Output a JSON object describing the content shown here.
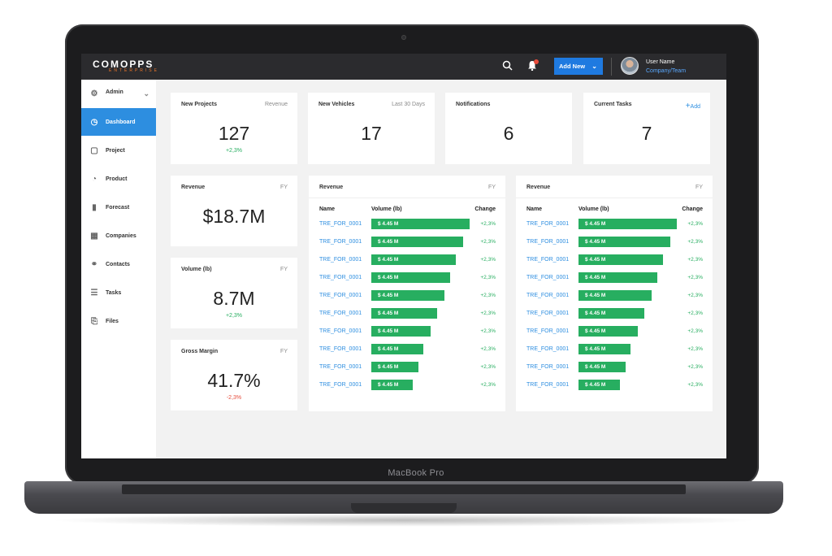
{
  "device": {
    "model_label": "MacBook Pro"
  },
  "topbar": {
    "logo_main": "COMOPPS",
    "logo_sub": "ENTERPRISE",
    "search_icon": "search-icon",
    "bell_icon": "bell-icon",
    "add_new_label": "Add New",
    "user_name": "User Name",
    "user_team": "Company/Team"
  },
  "sidebar": {
    "items": [
      {
        "label": "Admin",
        "icon": "gear-icon"
      },
      {
        "label": "Dashboard",
        "icon": "dashboard-icon"
      },
      {
        "label": "Project",
        "icon": "project-icon"
      },
      {
        "label": "Product",
        "icon": "pie-icon"
      },
      {
        "label": "Forecast",
        "icon": "bar-chart-icon"
      },
      {
        "label": "Companies",
        "icon": "building-icon"
      },
      {
        "label": "Contacts",
        "icon": "users-icon"
      },
      {
        "label": "Tasks",
        "icon": "list-icon"
      },
      {
        "label": "Files",
        "icon": "file-icon"
      }
    ]
  },
  "kpis": {
    "new_projects": {
      "title": "New Projects",
      "aux": "Revenue",
      "value": "127",
      "delta": "+2,3%"
    },
    "new_vehicles": {
      "title": "New Vehicles",
      "aux": "Last 30 Days",
      "value": "17"
    },
    "notifications": {
      "title": "Notifications",
      "value": "6"
    },
    "current_tasks": {
      "title": "Current Tasks",
      "aux": "Add",
      "value": "7"
    },
    "revenue": {
      "title": "Revenue",
      "aux": "FY",
      "value": "$18.7M"
    },
    "volume": {
      "title": "Volume (lb)",
      "aux": "FY",
      "value": "8.7M",
      "delta": "+2,3%"
    },
    "gross_margin": {
      "title": "Gross Margin",
      "aux": "FY",
      "value": "41.7%",
      "delta": "-2,3%"
    }
  },
  "tables": [
    {
      "title": "Revenue",
      "aux": "FY",
      "headers": {
        "name": "Name",
        "volume": "Volume (lb)",
        "change": "Change"
      },
      "rows": [
        {
          "name": "TRE_FOR_0001",
          "volume": "$ 4.45 M",
          "fill": 1.0,
          "change": "+2,3%"
        },
        {
          "name": "TRE_FOR_0001",
          "volume": "$ 4.45 M",
          "fill": 0.93,
          "change": "+2,3%"
        },
        {
          "name": "TRE_FOR_0001",
          "volume": "$ 4.45 M",
          "fill": 0.86,
          "change": "+2,3%"
        },
        {
          "name": "TRE_FOR_0001",
          "volume": "$ 4.45 M",
          "fill": 0.8,
          "change": "+2,3%"
        },
        {
          "name": "TRE_FOR_0001",
          "volume": "$ 4.45 M",
          "fill": 0.74,
          "change": "+2,3%"
        },
        {
          "name": "TRE_FOR_0001",
          "volume": "$ 4.45 M",
          "fill": 0.67,
          "change": "+2,3%"
        },
        {
          "name": "TRE_FOR_0001",
          "volume": "$ 4.45 M",
          "fill": 0.6,
          "change": "+2,3%"
        },
        {
          "name": "TRE_FOR_0001",
          "volume": "$ 4.45 M",
          "fill": 0.53,
          "change": "+2,3%"
        },
        {
          "name": "TRE_FOR_0001",
          "volume": "$ 4.45 M",
          "fill": 0.48,
          "change": "+2,3%"
        },
        {
          "name": "TRE_FOR_0001",
          "volume": "$ 4.45 M",
          "fill": 0.42,
          "change": "+2,3%"
        }
      ]
    },
    {
      "title": "Revenue",
      "aux": "FY",
      "headers": {
        "name": "Name",
        "volume": "Volume (lb)",
        "change": "Change"
      },
      "rows": [
        {
          "name": "TRE_FOR_0001",
          "volume": "$ 4.45 M",
          "fill": 1.0,
          "change": "+2,3%"
        },
        {
          "name": "TRE_FOR_0001",
          "volume": "$ 4.45 M",
          "fill": 0.93,
          "change": "+2,3%"
        },
        {
          "name": "TRE_FOR_0001",
          "volume": "$ 4.45 M",
          "fill": 0.86,
          "change": "+2,3%"
        },
        {
          "name": "TRE_FOR_0001",
          "volume": "$ 4.45 M",
          "fill": 0.8,
          "change": "+2,3%"
        },
        {
          "name": "TRE_FOR_0001",
          "volume": "$ 4.45 M",
          "fill": 0.74,
          "change": "+2,3%"
        },
        {
          "name": "TRE_FOR_0001",
          "volume": "$ 4.45 M",
          "fill": 0.67,
          "change": "+2,3%"
        },
        {
          "name": "TRE_FOR_0001",
          "volume": "$ 4.45 M",
          "fill": 0.6,
          "change": "+2,3%"
        },
        {
          "name": "TRE_FOR_0001",
          "volume": "$ 4.45 M",
          "fill": 0.53,
          "change": "+2,3%"
        },
        {
          "name": "TRE_FOR_0001",
          "volume": "$ 4.45 M",
          "fill": 0.48,
          "change": "+2,3%"
        },
        {
          "name": "TRE_FOR_0001",
          "volume": "$ 4.45 M",
          "fill": 0.42,
          "change": "+2,3%"
        }
      ]
    }
  ],
  "colors": {
    "accent": "#2d8ee0",
    "bar": "#27ae60",
    "topbar": "#2b2b2e",
    "negative": "#e74c3c"
  }
}
